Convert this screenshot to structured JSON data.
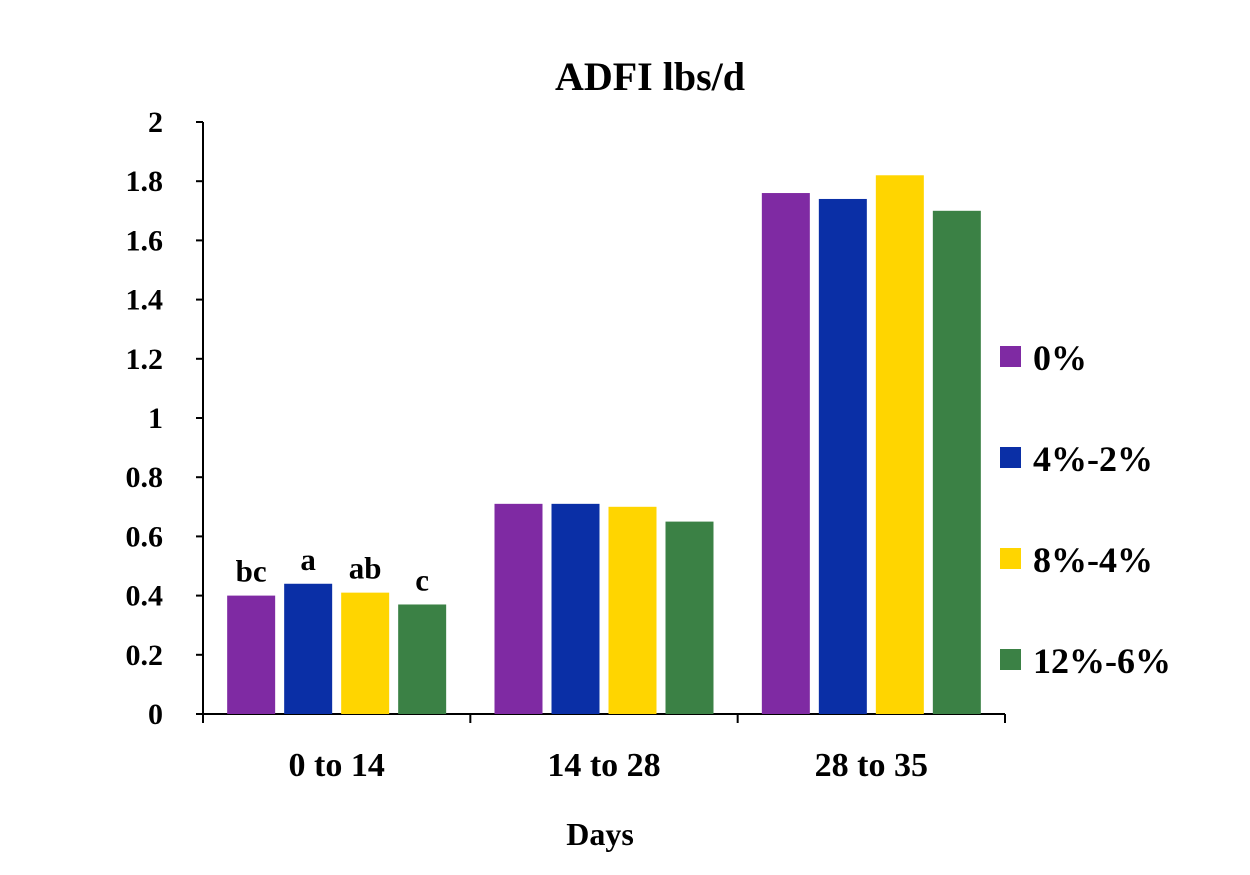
{
  "chart_data": {
    "type": "bar",
    "title": "ADFI lbs/d",
    "xlabel": "Days",
    "ylabel": "",
    "ylim": [
      0,
      2
    ],
    "yticks": [
      "0",
      "0.2",
      "0.4",
      "0.6",
      "0.8",
      "1",
      "1.2",
      "1.4",
      "1.6",
      "1.8",
      "2"
    ],
    "categories": [
      "0 to 14",
      "14 to 28",
      "28 to 35"
    ],
    "series": [
      {
        "name": "0%",
        "color": "#7F2AA3",
        "values": [
          0.4,
          0.71,
          1.76
        ],
        "labels": [
          "bc",
          "",
          ""
        ]
      },
      {
        "name": "4%-2%",
        "color": "#0A2FA6",
        "values": [
          0.44,
          0.71,
          1.74
        ],
        "labels": [
          "a",
          "",
          ""
        ]
      },
      {
        "name": "8%-4%",
        "color": "#FFD500",
        "values": [
          0.41,
          0.7,
          1.82
        ],
        "labels": [
          "ab",
          "",
          ""
        ]
      },
      {
        "name": "12%-6%",
        "color": "#3B8145",
        "values": [
          0.37,
          0.65,
          1.7
        ],
        "labels": [
          "c",
          "",
          ""
        ]
      }
    ],
    "grid": false,
    "legend_position": "right"
  }
}
